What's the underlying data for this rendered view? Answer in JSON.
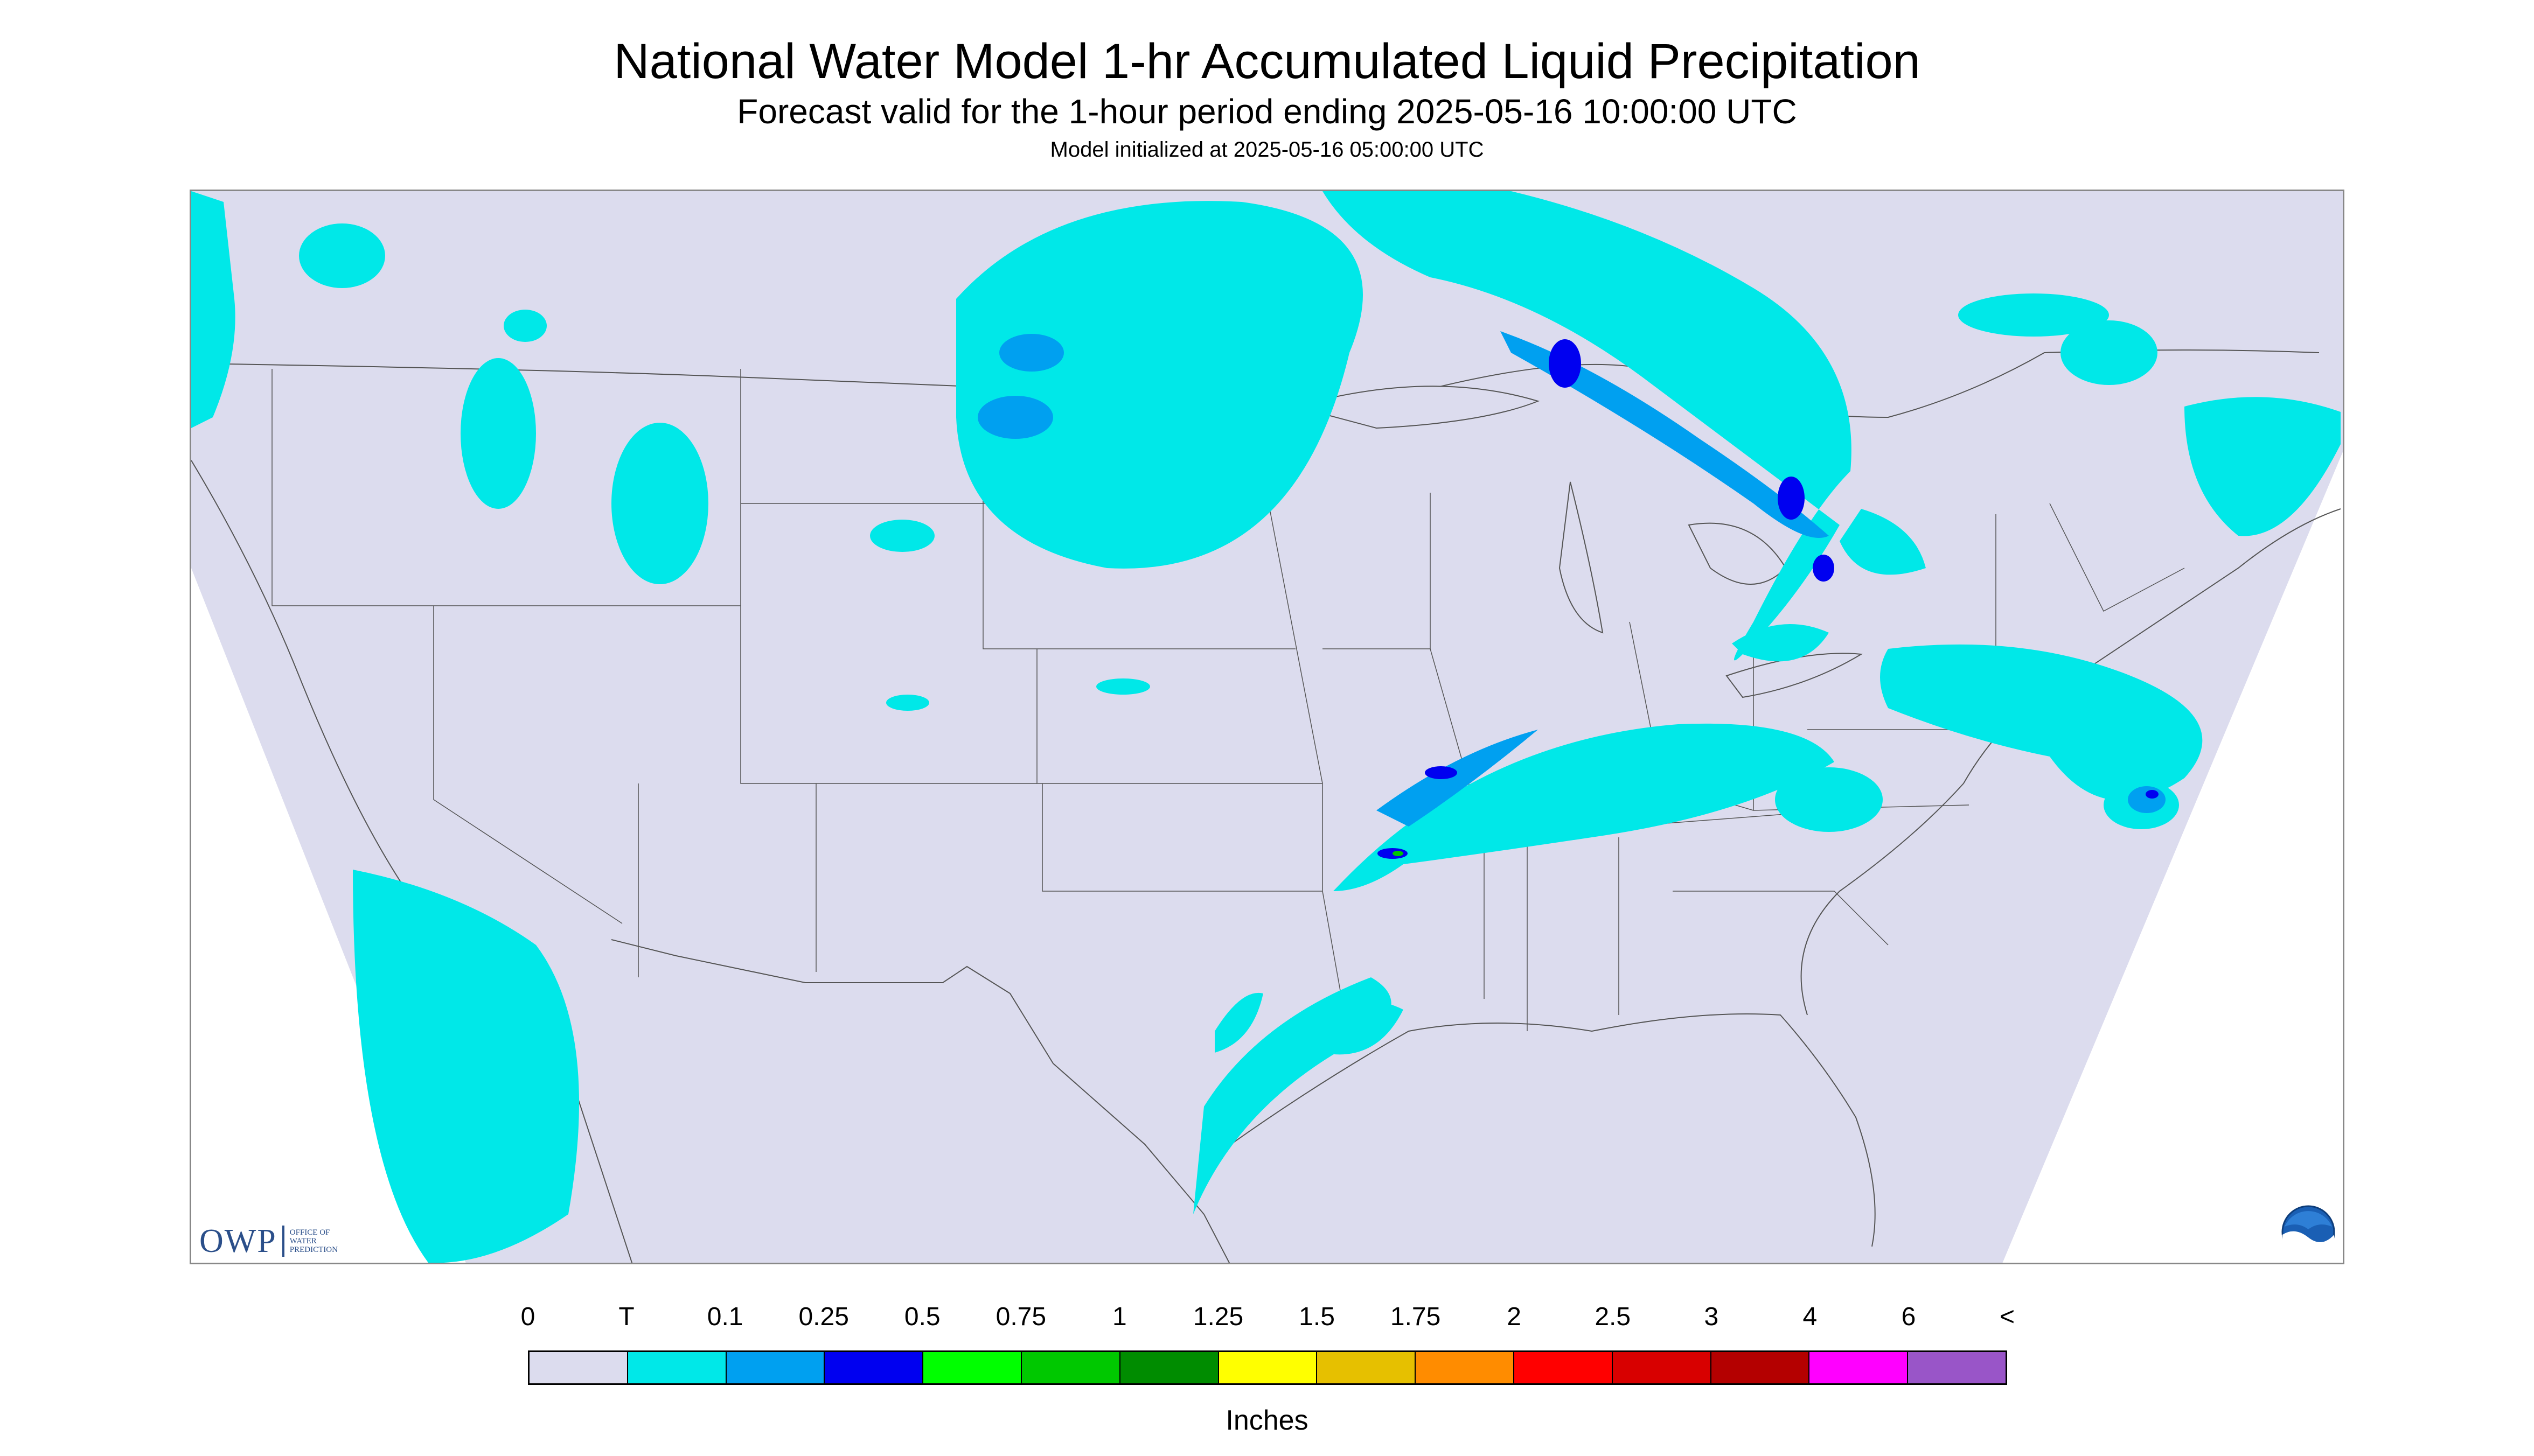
{
  "title": "National Water Model 1-hr Accumulated Liquid Precipitation",
  "subtitle": "Forecast valid for the 1-hour period ending 2025-05-16 10:00:00 UTC",
  "init_line": "Model initialized at 2025-05-16 05:00:00 UTC",
  "logos": {
    "owp_mark": "OWP",
    "owp_sub": [
      "OFFICE OF",
      "WATER",
      "PREDICTION"
    ],
    "noaa_mark": "NOAA"
  },
  "legend": {
    "labels": [
      "0",
      "T",
      "0.1",
      "0.25",
      "0.5",
      "0.75",
      "1",
      "1.25",
      "1.5",
      "1.75",
      "2",
      "2.5",
      "3",
      "4",
      "6",
      "<"
    ],
    "colors": [
      "#dcdcee",
      "#00e8e8",
      "#00a0f0",
      "#0000f0",
      "#00ff00",
      "#00c800",
      "#008c00",
      "#ffff00",
      "#e6c000",
      "#ff8c00",
      "#ff0000",
      "#d80000",
      "#b40000",
      "#ff00ff",
      "#9955c8"
    ],
    "units": "Inches"
  },
  "map_colors": {
    "outside": "#ffffff",
    "conus": "#dcdcee",
    "trace": "#00e8e8",
    "light": "#00a0f0",
    "moderate": "#0000f0",
    "heavy": "#00c800",
    "borders": "#555555"
  }
}
